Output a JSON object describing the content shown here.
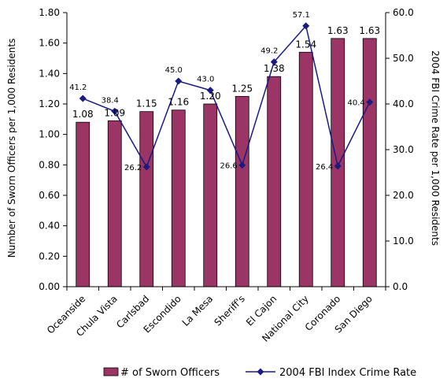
{
  "chart_data": {
    "type": "bar",
    "categories": [
      "Oceanside",
      "Chula Vista",
      "Carlsbad",
      "Escondido",
      "La Mesa",
      "Sheriff's",
      "El Cajon",
      "National City",
      "Coronado",
      "San Diego"
    ],
    "series": [
      {
        "name": "# of Sworn Officers",
        "type": "bar",
        "axis": "left",
        "color": "#9b3566",
        "values": [
          1.08,
          1.09,
          1.15,
          1.16,
          1.2,
          1.25,
          1.38,
          1.54,
          1.63,
          1.63
        ],
        "labels": [
          "1.08",
          "1.09",
          "1.15",
          "1.16",
          "1.20",
          "1.25",
          "1.38",
          "1.54",
          "1.63",
          "1.63"
        ]
      },
      {
        "name": "2004 FBI Index Crime Rate",
        "type": "line",
        "axis": "right",
        "color": "#1a1a80",
        "marker": "diamond",
        "values": [
          41.2,
          38.4,
          26.2,
          45.0,
          43.0,
          26.6,
          49.2,
          57.1,
          26.4,
          40.4
        ],
        "labels": [
          "41.2",
          "38.4",
          "26.2",
          "45.0",
          "43.0",
          "26.6",
          "49.2",
          "57.1",
          "26.4",
          "40.4"
        ]
      }
    ],
    "ylabel": "Number of Sworn Officers per 1,000 Residents",
    "y2label": "2004 FBI Crime Rate per 1,000 Residents",
    "ylim": [
      0,
      1.8
    ],
    "y2lim": [
      0,
      60
    ],
    "yticks": [
      "0.00",
      "0.20",
      "0.40",
      "0.60",
      "0.80",
      "1.00",
      "1.20",
      "1.40",
      "1.60",
      "1.80"
    ],
    "y2ticks": [
      "0.0",
      "10.0",
      "20.0",
      "30.0",
      "40.0",
      "50.0",
      "60.0"
    ],
    "grid": false,
    "legend_position": "bottom"
  }
}
